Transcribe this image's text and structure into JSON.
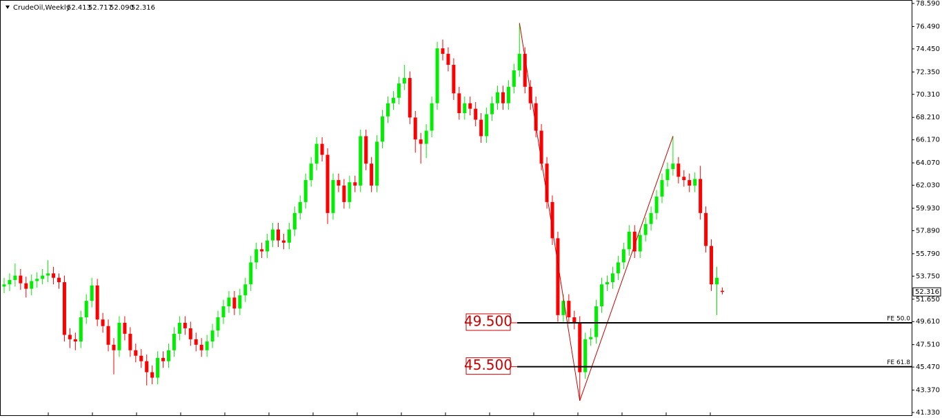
{
  "chart_data": {
    "type": "candlestick",
    "title": "CrudeOil,Weekly",
    "header_quote": [
      {
        "value": 52.413,
        "label": "52.413"
      },
      {
        "value": 52.717,
        "label": "52.717"
      },
      {
        "value": 52.09,
        "label": "52.090"
      },
      {
        "value": 52.316,
        "label": "52.316"
      }
    ],
    "up_color": "#00ee00",
    "down_color": "#ff0000",
    "open": [
      52.8,
      53.0,
      53.4,
      53.8,
      53.1,
      52.6,
      53.3,
      53.5,
      53.8,
      54.0,
      53.6,
      53.2,
      48.4,
      48.0,
      47.8,
      50.0,
      51.5,
      52.9,
      49.8,
      49.2,
      47.5,
      47.0,
      49.5,
      48.5,
      47.0,
      46.5,
      46.0,
      45.0,
      44.5,
      46.3,
      46.0,
      47.0,
      48.5,
      49.5,
      49.0,
      48.0,
      47.5,
      47.0,
      47.8,
      48.8,
      50.0,
      51.0,
      51.8,
      50.8,
      52.0,
      53.0,
      55.0,
      56.2,
      56.0,
      57.0,
      58.0,
      57.0,
      56.8,
      58.0,
      59.5,
      60.5,
      62.5,
      64.0,
      65.8,
      64.8,
      59.5,
      62.5,
      62.0,
      60.5,
      62.3,
      62.0,
      66.5,
      64.0,
      62.0,
      66.0,
      68.3,
      69.5,
      70.0,
      71.3,
      71.8,
      68.2,
      66.2,
      65.8,
      67.0,
      69.5,
      74.5,
      74.0,
      73.0,
      70.4,
      68.6,
      69.5,
      69.0,
      68.0,
      66.5,
      68.5,
      69.5,
      70.5,
      69.5,
      71.0,
      72.5,
      74.0,
      71.0,
      69.5,
      67.0,
      64.0,
      60.5,
      57.2,
      50.2,
      51.5,
      50.0,
      49.5,
      45.0,
      48.0,
      48.2,
      51.0,
      53.0,
      53.2,
      54.0,
      55.0,
      56.2,
      57.8,
      56.0,
      57.5,
      58.5,
      59.5,
      61.0,
      62.5,
      63.5,
      64.0,
      62.8,
      62.5,
      62.0,
      62.6,
      59.5,
      56.5,
      53.0,
      52.413
    ],
    "high": [
      53.6,
      54.0,
      54.9,
      54.4,
      53.7,
      53.9,
      54.1,
      54.4,
      55.2,
      54.6,
      54.0,
      53.8,
      49.0,
      48.6,
      50.6,
      52.1,
      53.6,
      53.5,
      50.4,
      49.8,
      48.1,
      50.1,
      50.1,
      49.1,
      47.6,
      47.1,
      46.6,
      45.6,
      46.9,
      46.9,
      47.6,
      49.1,
      50.1,
      50.1,
      49.6,
      48.6,
      48.1,
      48.4,
      49.4,
      50.6,
      51.6,
      52.4,
      52.4,
      52.6,
      53.6,
      55.6,
      56.8,
      56.8,
      57.6,
      58.6,
      58.6,
      57.6,
      58.6,
      60.1,
      61.1,
      63.1,
      64.6,
      66.4,
      66.4,
      65.4,
      63.1,
      63.1,
      62.6,
      62.9,
      62.9,
      67.1,
      67.1,
      64.6,
      66.6,
      68.9,
      70.1,
      70.6,
      71.9,
      73.0,
      72.4,
      68.8,
      66.8,
      67.6,
      70.1,
      75.1,
      75.3,
      74.6,
      73.6,
      71.0,
      70.1,
      70.1,
      69.6,
      68.6,
      69.1,
      70.1,
      71.1,
      71.1,
      71.6,
      73.1,
      76.8,
      74.6,
      71.6,
      70.1,
      67.6,
      64.6,
      61.1,
      57.8,
      52.1,
      52.1,
      50.6,
      50.1,
      48.6,
      49.0,
      51.6,
      53.6,
      53.8,
      54.6,
      55.6,
      56.8,
      58.4,
      58.4,
      58.1,
      59.1,
      60.1,
      61.6,
      63.1,
      64.1,
      66.5,
      64.6,
      63.4,
      63.1,
      63.2,
      63.8,
      60.1,
      57.1,
      54.6,
      52.717
    ],
    "low": [
      52.2,
      52.4,
      52.8,
      52.5,
      51.8,
      52.0,
      52.7,
      53.0,
      53.2,
      53.0,
      52.6,
      47.8,
      47.2,
      47.0,
      47.2,
      49.4,
      50.9,
      49.2,
      48.6,
      46.9,
      44.8,
      46.4,
      47.9,
      46.4,
      45.9,
      45.4,
      43.8,
      43.9,
      43.9,
      45.4,
      45.4,
      46.4,
      47.9,
      48.4,
      47.4,
      46.9,
      46.4,
      46.4,
      47.2,
      48.2,
      49.4,
      50.4,
      50.2,
      50.2,
      51.4,
      52.4,
      54.4,
      55.4,
      55.4,
      56.4,
      56.4,
      56.2,
      56.2,
      57.4,
      58.9,
      59.9,
      61.9,
      63.4,
      64.2,
      58.5,
      58.9,
      61.4,
      59.9,
      59.9,
      61.4,
      61.4,
      63.4,
      61.4,
      61.4,
      65.4,
      67.7,
      68.9,
      69.4,
      70.7,
      67.6,
      65.0,
      64.0,
      64.5,
      66.4,
      68.9,
      73.4,
      72.4,
      69.8,
      68.0,
      68.0,
      68.4,
      67.4,
      65.9,
      65.9,
      67.9,
      68.9,
      68.9,
      68.9,
      70.4,
      71.9,
      70.4,
      68.9,
      66.4,
      63.4,
      59.9,
      56.6,
      49.6,
      49.6,
      49.4,
      48.9,
      42.4,
      44.4,
      47.4,
      47.6,
      50.4,
      52.4,
      52.6,
      53.4,
      54.4,
      55.6,
      55.4,
      55.4,
      56.9,
      57.9,
      58.9,
      60.4,
      61.9,
      62.9,
      62.2,
      61.9,
      61.4,
      61.4,
      58.9,
      55.9,
      52.4,
      50.2,
      52.09
    ],
    "close": [
      53.0,
      53.4,
      53.8,
      53.1,
      52.6,
      53.3,
      53.5,
      53.8,
      54.0,
      53.6,
      53.2,
      48.4,
      48.0,
      47.8,
      50.0,
      51.5,
      52.9,
      49.8,
      49.2,
      47.5,
      47.0,
      49.5,
      48.5,
      47.0,
      46.5,
      46.0,
      45.0,
      44.5,
      46.3,
      46.0,
      47.0,
      48.5,
      49.5,
      49.0,
      48.0,
      47.5,
      47.0,
      47.8,
      48.8,
      50.0,
      51.0,
      51.8,
      50.8,
      52.0,
      53.0,
      55.0,
      56.2,
      56.0,
      57.0,
      58.0,
      57.0,
      56.8,
      58.0,
      59.5,
      60.5,
      62.5,
      64.0,
      65.8,
      64.8,
      59.5,
      62.5,
      62.0,
      60.5,
      62.3,
      62.0,
      66.5,
      64.0,
      62.0,
      66.0,
      68.3,
      69.5,
      70.0,
      71.3,
      71.8,
      68.2,
      66.2,
      65.8,
      67.0,
      69.5,
      74.5,
      74.0,
      73.0,
      70.4,
      68.6,
      69.5,
      69.0,
      68.0,
      66.5,
      68.5,
      69.5,
      70.5,
      69.5,
      71.0,
      72.5,
      74.0,
      71.0,
      69.5,
      67.0,
      64.0,
      60.5,
      57.2,
      50.2,
      51.5,
      50.0,
      49.5,
      45.0,
      48.0,
      48.2,
      51.0,
      53.0,
      53.2,
      54.0,
      55.0,
      56.2,
      57.8,
      56.0,
      57.5,
      58.5,
      59.5,
      61.0,
      62.5,
      63.5,
      64.0,
      62.8,
      62.5,
      62.0,
      62.6,
      59.5,
      56.5,
      53.0,
      53.6,
      52.316
    ],
    "last_price": {
      "value": 52.316,
      "label": "52.316"
    },
    "ylim": [
      41.33,
      78.59
    ],
    "yticks": [
      {
        "value": 78.59,
        "label": "78.590"
      },
      {
        "value": 76.49,
        "label": "76.490"
      },
      {
        "value": 74.45,
        "label": "74.450"
      },
      {
        "value": 72.35,
        "label": "72.350"
      },
      {
        "value": 70.31,
        "label": "70.310"
      },
      {
        "value": 68.21,
        "label": "68.210"
      },
      {
        "value": 66.17,
        "label": "66.170"
      },
      {
        "value": 64.07,
        "label": "64.070"
      },
      {
        "value": 62.03,
        "label": "62.030"
      },
      {
        "value": 59.93,
        "label": "59.930"
      },
      {
        "value": 57.89,
        "label": "57.890"
      },
      {
        "value": 55.79,
        "label": "55.790"
      },
      {
        "value": 53.75,
        "label": "53.750"
      },
      {
        "value": 51.65,
        "label": "51.650"
      },
      {
        "value": 49.61,
        "label": "49.610"
      },
      {
        "value": 47.51,
        "label": "47.510"
      },
      {
        "value": 45.47,
        "label": "45.470"
      },
      {
        "value": 43.37,
        "label": "43.370"
      },
      {
        "value": 41.33,
        "label": "41.330"
      }
    ],
    "zigzag": {
      "x": [
        94,
        105,
        122
      ],
      "values": [
        76.8,
        42.4,
        66.5
      ],
      "color": "#cc0000"
    },
    "levels": [
      {
        "value": 49.5,
        "label": "49.500",
        "tag": "FE 50.0"
      },
      {
        "value": 45.5,
        "label": "45.500",
        "tag": "FE 61.8"
      }
    ]
  }
}
